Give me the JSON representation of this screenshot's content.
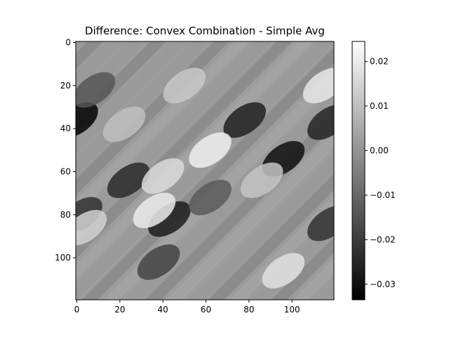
{
  "chart_data": {
    "type": "heatmap",
    "title": "Difference: Convex Combination - Simple Avg",
    "xlabel": "",
    "ylabel": "",
    "grid": false,
    "colormap": "gray",
    "size": [
      120,
      120
    ],
    "x_ticks": [
      {
        "value": 0,
        "label": "0"
      },
      {
        "value": 20,
        "label": "20"
      },
      {
        "value": 40,
        "label": "40"
      },
      {
        "value": 60,
        "label": "60"
      },
      {
        "value": 80,
        "label": "80"
      },
      {
        "value": 100,
        "label": "100"
      }
    ],
    "y_ticks": [
      {
        "value": 0,
        "label": "0"
      },
      {
        "value": 20,
        "label": "20"
      },
      {
        "value": 40,
        "label": "40"
      },
      {
        "value": 60,
        "label": "60"
      },
      {
        "value": 80,
        "label": "80"
      },
      {
        "value": 100,
        "label": "100"
      }
    ],
    "colorbar": {
      "min": -0.0335,
      "max": 0.0245,
      "ticks": [
        {
          "value": 0.02,
          "label": "0.02"
        },
        {
          "value": 0.01,
          "label": "0.01"
        },
        {
          "value": 0.0,
          "label": "0.00"
        },
        {
          "value": -0.01,
          "label": "−0.01"
        },
        {
          "value": -0.02,
          "label": "−0.02"
        },
        {
          "value": -0.03,
          "label": "−0.03"
        }
      ]
    },
    "features": [
      {
        "x": 0,
        "y": 36,
        "value": -0.033
      },
      {
        "x": 96,
        "y": 54,
        "value": -0.03
      },
      {
        "x": 43,
        "y": 82,
        "value": -0.027
      },
      {
        "x": 78,
        "y": 36,
        "value": -0.026
      },
      {
        "x": 117,
        "y": 37,
        "value": -0.025
      },
      {
        "x": 24,
        "y": 64,
        "value": -0.024
      },
      {
        "x": 2,
        "y": 80,
        "value": -0.022
      },
      {
        "x": 117,
        "y": 84,
        "value": -0.022
      },
      {
        "x": 38,
        "y": 102,
        "value": -0.018
      },
      {
        "x": 8,
        "y": 22,
        "value": -0.014
      },
      {
        "x": 62,
        "y": 72,
        "value": -0.013
      },
      {
        "x": 62,
        "y": 50,
        "value": 0.021
      },
      {
        "x": 36,
        "y": 78,
        "value": 0.02
      },
      {
        "x": 115,
        "y": 20,
        "value": 0.019
      },
      {
        "x": 96,
        "y": 106,
        "value": 0.018
      },
      {
        "x": 40,
        "y": 62,
        "value": 0.016
      },
      {
        "x": 4,
        "y": 86,
        "value": 0.014
      },
      {
        "x": 50,
        "y": 20,
        "value": 0.012
      },
      {
        "x": 86,
        "y": 64,
        "value": 0.011
      },
      {
        "x": 22,
        "y": 38,
        "value": 0.01
      }
    ]
  }
}
